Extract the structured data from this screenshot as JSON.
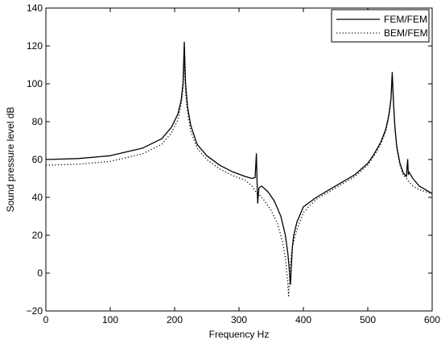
{
  "chart_data": {
    "type": "line",
    "title": "",
    "xlabel": "Frequency Hz",
    "ylabel": "Sound pressure level dB",
    "xlim": [
      0,
      600
    ],
    "ylim": [
      -20,
      140
    ],
    "xticks": [
      0,
      100,
      200,
      300,
      400,
      500,
      600
    ],
    "yticks": [
      -20,
      0,
      20,
      40,
      60,
      80,
      100,
      120,
      140
    ],
    "xtick_labels": [
      "0",
      "100",
      "200",
      "300",
      "400",
      "500",
      "600"
    ],
    "ytick_labels": [
      "−20",
      "0",
      "20",
      "40",
      "60",
      "80",
      "100",
      "120",
      "140"
    ],
    "grid": false,
    "legend_position": "top-right",
    "series": [
      {
        "name": "FEM/FEM",
        "style": "solid",
        "color": "#000000",
        "x": [
          0,
          50,
          100,
          150,
          180,
          195,
          205,
          210,
          213,
          215,
          217,
          220,
          225,
          235,
          250,
          270,
          290,
          310,
          320,
          325,
          327,
          328,
          329,
          331,
          335,
          345,
          355,
          365,
          372,
          376,
          380,
          381,
          382,
          383,
          385,
          390,
          400,
          420,
          440,
          460,
          480,
          500,
          510,
          520,
          528,
          533,
          536,
          538,
          540,
          542,
          545,
          550,
          555,
          560,
          561,
          562,
          563,
          564,
          570,
          580,
          590,
          600
        ],
        "y": [
          60,
          60.5,
          62,
          66,
          71,
          77,
          84,
          91,
          100,
          122,
          100,
          88,
          78,
          68,
          62,
          57,
          53.5,
          51,
          50,
          50.5,
          63,
          49,
          37,
          45,
          46,
          43,
          38,
          30,
          20,
          10,
          -6,
          2,
          8,
          14,
          20,
          27,
          35,
          40,
          44,
          48,
          52,
          58,
          63,
          69,
          76,
          84,
          92,
          106,
          90,
          78,
          67,
          58,
          53,
          51,
          56,
          60,
          52,
          53.5,
          50,
          46,
          44,
          42
        ]
      },
      {
        "name": "BEM/FEM",
        "style": "dotted",
        "color": "#000000",
        "x": [
          0,
          50,
          100,
          150,
          180,
          195,
          205,
          210,
          213,
          215,
          217,
          220,
          225,
          235,
          250,
          270,
          290,
          310,
          320,
          328,
          333,
          340,
          350,
          360,
          368,
          372,
          375,
          377,
          378,
          380,
          383,
          390,
          400,
          420,
          440,
          460,
          480,
          500,
          510,
          520,
          528,
          533,
          536,
          538,
          540,
          542,
          545,
          550,
          555,
          560,
          562,
          570,
          580,
          590,
          600
        ],
        "y": [
          57,
          57.5,
          59,
          63,
          68,
          74,
          81,
          89,
          97,
          112,
          95,
          85,
          75,
          66,
          60,
          55,
          51.5,
          49,
          46,
          42,
          41,
          38,
          33,
          26,
          16,
          8,
          -2,
          -12,
          -5,
          6,
          14,
          23,
          32,
          39,
          43,
          47,
          51,
          57,
          62,
          68,
          75,
          83,
          91,
          104,
          89,
          77,
          66,
          57,
          52,
          50,
          49,
          46,
          44,
          43,
          42
        ]
      }
    ]
  }
}
